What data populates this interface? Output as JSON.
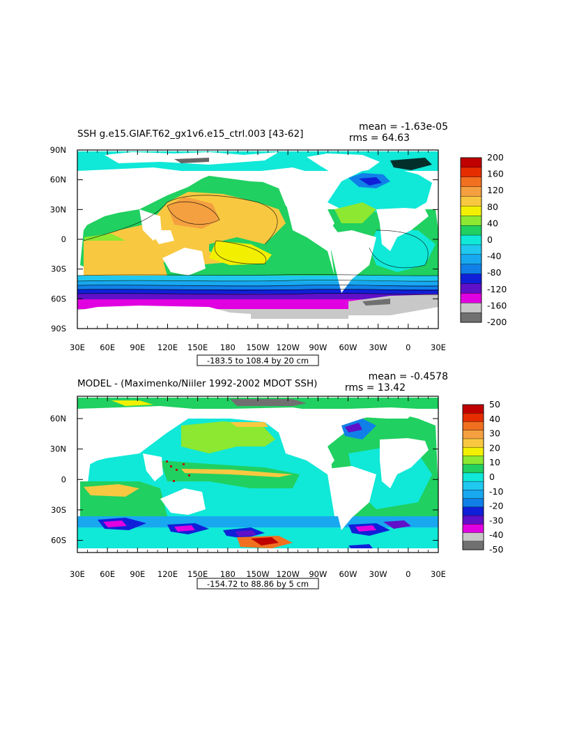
{
  "chart_data": [
    {
      "type": "heatmap",
      "title": "SSH  g.e15.GIAF.T62_gx1v6.e15_ctrl.003 [43-62]",
      "mean_label": "mean = -1.63e-05",
      "rms_label": "rms = 64.63",
      "range_label": "-183.5 to 108.4 by 20 cm",
      "xticks": [
        "30E",
        "60E",
        "90E",
        "120E",
        "150E",
        "180",
        "150W",
        "120W",
        "90W",
        "60W",
        "30W",
        "0",
        "30E"
      ],
      "yticks": [
        "90N",
        "60N",
        "30N",
        "0",
        "30S",
        "60S",
        "90S"
      ],
      "ylim": [
        -90,
        90
      ],
      "xlim": [
        30,
        390
      ],
      "colorbar": {
        "labels": [
          "200",
          "160",
          "120",
          "80",
          "40",
          "0",
          "-40",
          "-80",
          "-120",
          "-160",
          "-200"
        ],
        "colors": [
          "#c00000",
          "#e62d00",
          "#f07020",
          "#f4a040",
          "#f8c840",
          "#f2f000",
          "#8ce830",
          "#20d060",
          "#10e8d8",
          "#20c8f0",
          "#18a8f0",
          "#1080e8",
          "#1020d8",
          "#6010c8",
          "#e000e0",
          "#c8c8c8",
          "#707070"
        ]
      }
    },
    {
      "type": "heatmap",
      "title": "MODEL - (Maximenko/Niiler 1992-2002 MDOT SSH)",
      "mean_label": "mean = -0.4578",
      "rms_label": "rms = 13.42",
      "range_label": "-154.72 to 88.86 by 5 cm",
      "xticks": [
        "30E",
        "60E",
        "90E",
        "120E",
        "150E",
        "180",
        "150W",
        "120W",
        "90W",
        "60W",
        "30W",
        "0",
        "30E"
      ],
      "yticks": [
        "60N",
        "30N",
        "0",
        "30S",
        "60S"
      ],
      "ylim": [
        -72,
        82
      ],
      "xlim": [
        30,
        390
      ],
      "colorbar": {
        "labels": [
          "50",
          "40",
          "30",
          "20",
          "10",
          "0",
          "-10",
          "-20",
          "-30",
          "-40",
          "-50"
        ],
        "colors": [
          "#c00000",
          "#e62d00",
          "#f07020",
          "#f4a040",
          "#f8c840",
          "#f2f000",
          "#8ce830",
          "#20d060",
          "#10e8d8",
          "#20c8f0",
          "#18a8f0",
          "#1080e8",
          "#1020d8",
          "#6010c8",
          "#e000e0",
          "#c8c8c8",
          "#707070"
        ]
      }
    }
  ]
}
